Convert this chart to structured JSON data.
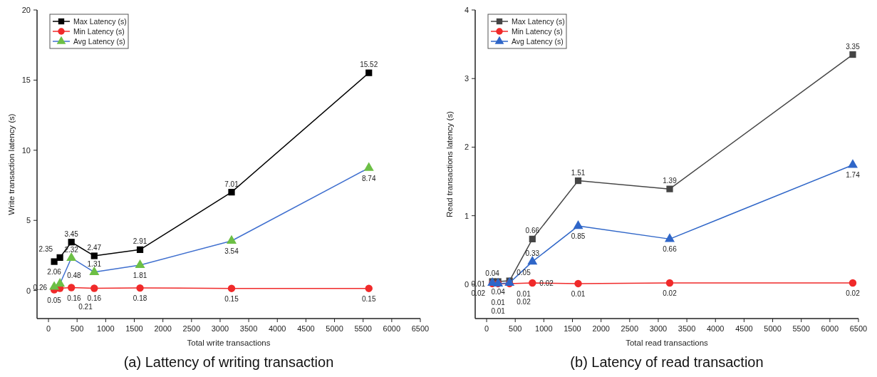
{
  "chart_data": [
    {
      "type": "line",
      "title": "(a) Lattency of writing transaction",
      "xlabel": "Total write transactions",
      "ylabel": "Write transaction latency (s)",
      "x": [
        100,
        200,
        400,
        800,
        1600,
        3200,
        5600
      ],
      "xlim": [
        -200,
        6500
      ],
      "xticks": [
        0,
        500,
        1000,
        1500,
        2000,
        2500,
        3000,
        3500,
        4000,
        4500,
        5000,
        5500,
        6000,
        6500
      ],
      "ylim": [
        -2,
        20
      ],
      "yticks": [
        0,
        5,
        10,
        15,
        20
      ],
      "legend": "top left",
      "data_labels": true,
      "series": [
        {
          "name": "Max Latency (s)",
          "color": "#000000",
          "marker": "square",
          "values": [
            2.06,
            2.35,
            3.45,
            2.47,
            2.91,
            7.01,
            15.52
          ]
        },
        {
          "name": "Min Latency (s)",
          "color": "#f02a2a",
          "marker": "circle",
          "values": [
            0.05,
            0.16,
            0.21,
            0.16,
            0.18,
            0.15,
            0.15
          ]
        },
        {
          "name": "Avg Latency (s)",
          "color": "#3f6fcf",
          "colors": [
            "#6cbf45",
            "#6cbf45",
            "#6cbf45",
            "#6cbf45",
            "#6cbf45",
            "#6cbf45",
            "#6cbf45"
          ],
          "marker": "triangle",
          "values": [
            0.26,
            0.48,
            2.32,
            1.31,
            1.81,
            3.54,
            8.74
          ]
        }
      ]
    },
    {
      "type": "line",
      "title": "(b) Latency of read transaction",
      "xlabel": "Total read transactions",
      "ylabel": "Read transactions latency (s)",
      "x": [
        100,
        200,
        400,
        800,
        1600,
        3200,
        6400
      ],
      "xlim": [
        -200,
        6500
      ],
      "xticks": [
        0,
        500,
        1000,
        1500,
        2000,
        2500,
        3000,
        3500,
        4000,
        4500,
        5000,
        5500,
        6000,
        6500
      ],
      "ylim": [
        -0.5,
        4
      ],
      "yticks": [
        0,
        1,
        2,
        3,
        4
      ],
      "legend": "top left",
      "data_labels": true,
      "series": [
        {
          "name": "Max Latency (s)",
          "color": "#454545",
          "marker": "square",
          "values": [
            0.04,
            0.04,
            0.05,
            0.66,
            1.51,
            1.39,
            3.35
          ]
        },
        {
          "name": "Min Latency (s)",
          "color": "#f02a2a",
          "marker": "circle",
          "values": [
            0.01,
            0.01,
            0.01,
            0.02,
            0.01,
            0.02,
            0.02
          ]
        },
        {
          "name": "Avg Latency (s)",
          "color": "#2f66c8",
          "marker": "triangle",
          "values": [
            0.02,
            0.01,
            0.02,
            0.33,
            0.85,
            0.66,
            1.74
          ]
        }
      ]
    }
  ]
}
